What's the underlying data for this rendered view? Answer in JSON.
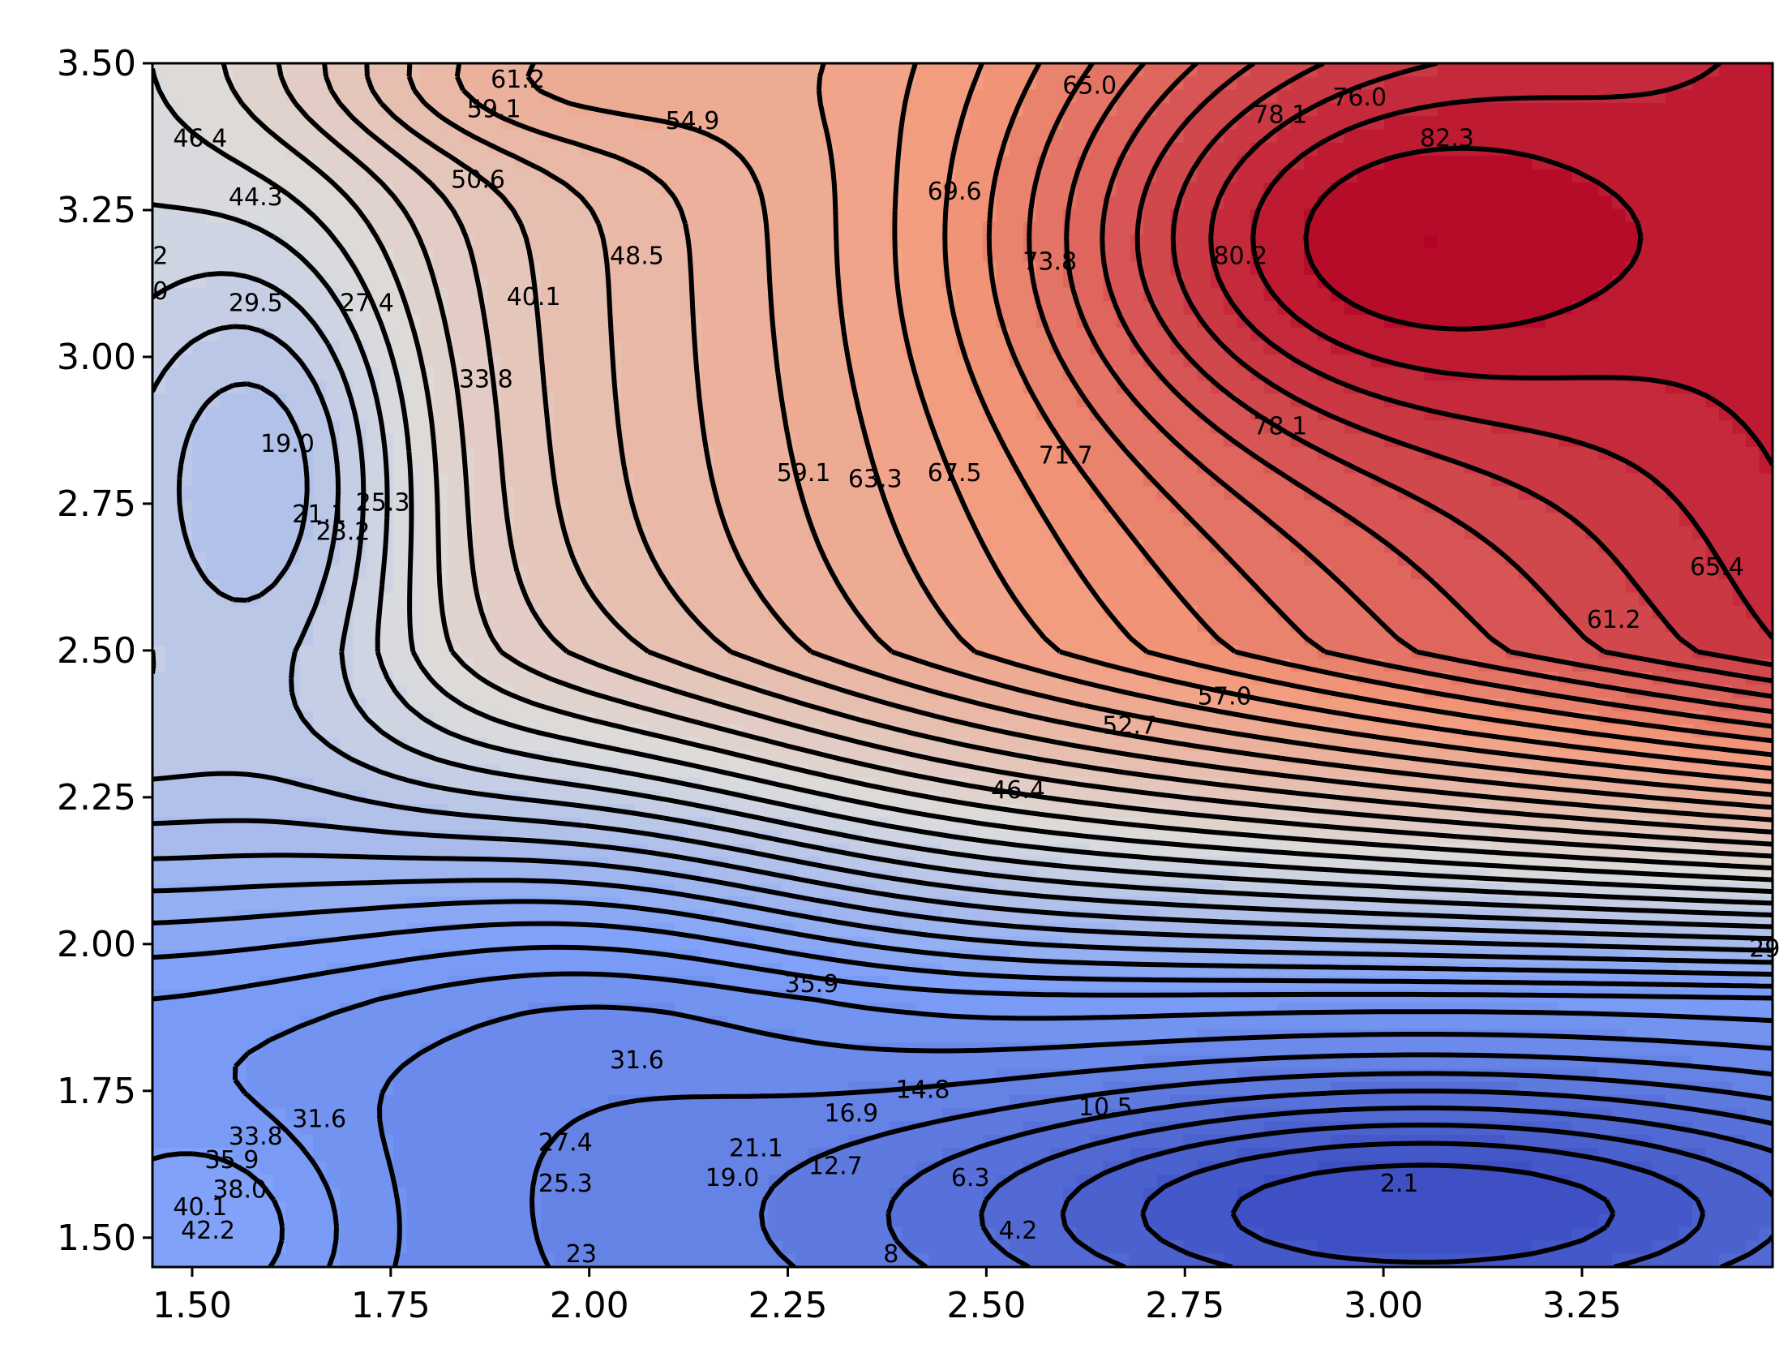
{
  "chart_data": {
    "type": "contour",
    "colormap": "coolwarm",
    "xlim": [
      1.45,
      3.49
    ],
    "ylim": [
      1.45,
      3.5
    ],
    "x_ticks": [
      "1.50",
      "1.75",
      "2.00",
      "2.25",
      "2.50",
      "2.75",
      "3.00",
      "3.25"
    ],
    "y_ticks": [
      "1.50",
      "1.75",
      "2.00",
      "2.25",
      "2.50",
      "2.75",
      "3.00",
      "3.25",
      "3.50"
    ],
    "value_range": [
      0,
      84
    ],
    "features": [
      {
        "type": "max",
        "x": 2.95,
        "y": 3.2,
        "value": 84
      },
      {
        "type": "min",
        "x": 3.0,
        "y": 1.55,
        "value": 0
      },
      {
        "type": "min",
        "x": 1.56,
        "y": 2.8,
        "value": 17
      }
    ],
    "contour_labels": [
      {
        "text": "61.2",
        "x": 1.91,
        "y": 3.47
      },
      {
        "text": "59.1",
        "x": 1.88,
        "y": 3.42
      },
      {
        "text": "54.9",
        "x": 2.13,
        "y": 3.4
      },
      {
        "text": "46.4",
        "x": 1.51,
        "y": 3.37
      },
      {
        "text": "44.3",
        "x": 1.58,
        "y": 3.27
      },
      {
        "text": "50.6",
        "x": 1.86,
        "y": 3.3
      },
      {
        "text": "48.5",
        "x": 2.06,
        "y": 3.17
      },
      {
        "text": "40.1",
        "x": 1.93,
        "y": 3.1
      },
      {
        "text": "29.5",
        "x": 1.58,
        "y": 3.09
      },
      {
        "text": "27.4",
        "x": 1.72,
        "y": 3.09
      },
      {
        "text": "33.8",
        "x": 1.87,
        "y": 2.96
      },
      {
        "text": "19.0",
        "x": 1.62,
        "y": 2.85
      },
      {
        "text": "21.1",
        "x": 1.66,
        "y": 2.73
      },
      {
        "text": "23.2",
        "x": 1.69,
        "y": 2.7
      },
      {
        "text": "25.3",
        "x": 1.74,
        "y": 2.75
      },
      {
        "text": "65.0",
        "x": 2.63,
        "y": 3.46
      },
      {
        "text": "69.6",
        "x": 2.46,
        "y": 3.28
      },
      {
        "text": "73.8",
        "x": 2.58,
        "y": 3.16
      },
      {
        "text": "78.1",
        "x": 2.87,
        "y": 3.41
      },
      {
        "text": "76.0",
        "x": 2.97,
        "y": 3.44
      },
      {
        "text": "82.3",
        "x": 3.08,
        "y": 3.37
      },
      {
        "text": "80.2",
        "x": 2.82,
        "y": 3.17
      },
      {
        "text": "78.1",
        "x": 2.87,
        "y": 2.88
      },
      {
        "text": "59.1",
        "x": 2.27,
        "y": 2.8
      },
      {
        "text": "63.3",
        "x": 2.36,
        "y": 2.79
      },
      {
        "text": "67.5",
        "x": 2.46,
        "y": 2.8
      },
      {
        "text": "71.7",
        "x": 2.6,
        "y": 2.83
      },
      {
        "text": "65.4",
        "x": 3.42,
        "y": 2.64
      },
      {
        "text": "61.2",
        "x": 3.29,
        "y": 2.55
      },
      {
        "text": "57.0",
        "x": 2.8,
        "y": 2.42
      },
      {
        "text": "52.7",
        "x": 2.68,
        "y": 2.37
      },
      {
        "text": "46.4",
        "x": 2.54,
        "y": 2.26
      },
      {
        "text": "29",
        "x": 3.48,
        "y": 1.99
      },
      {
        "text": "35.9",
        "x": 2.28,
        "y": 1.93
      },
      {
        "text": "31.6",
        "x": 2.06,
        "y": 1.8
      },
      {
        "text": "10.5",
        "x": 2.65,
        "y": 1.72
      },
      {
        "text": "14.8",
        "x": 2.42,
        "y": 1.75
      },
      {
        "text": "16.9",
        "x": 2.33,
        "y": 1.71
      },
      {
        "text": "12.7",
        "x": 2.31,
        "y": 1.62
      },
      {
        "text": "21.1",
        "x": 2.21,
        "y": 1.65
      },
      {
        "text": "19.0",
        "x": 2.18,
        "y": 1.6
      },
      {
        "text": "27.4",
        "x": 1.97,
        "y": 1.66
      },
      {
        "text": "25.3",
        "x": 1.97,
        "y": 1.59
      },
      {
        "text": "2.1",
        "x": 3.02,
        "y": 1.59
      },
      {
        "text": "6.3",
        "x": 2.48,
        "y": 1.6
      },
      {
        "text": "4.2",
        "x": 2.54,
        "y": 1.51
      },
      {
        "text": "31.6",
        "x": 1.66,
        "y": 1.7
      },
      {
        "text": "33.8",
        "x": 1.58,
        "y": 1.67
      },
      {
        "text": "35.9",
        "x": 1.55,
        "y": 1.63
      },
      {
        "text": "38.0",
        "x": 1.56,
        "y": 1.58
      },
      {
        "text": "40.1",
        "x": 1.51,
        "y": 1.55
      },
      {
        "text": "42.2",
        "x": 1.52,
        "y": 1.51
      },
      {
        "text": "23",
        "x": 1.99,
        "y": 1.47
      },
      {
        "text": "8",
        "x": 2.38,
        "y": 1.47
      },
      {
        "text": "2",
        "x": 1.46,
        "y": 3.17
      },
      {
        "text": "0",
        "x": 1.46,
        "y": 3.11
      }
    ]
  }
}
